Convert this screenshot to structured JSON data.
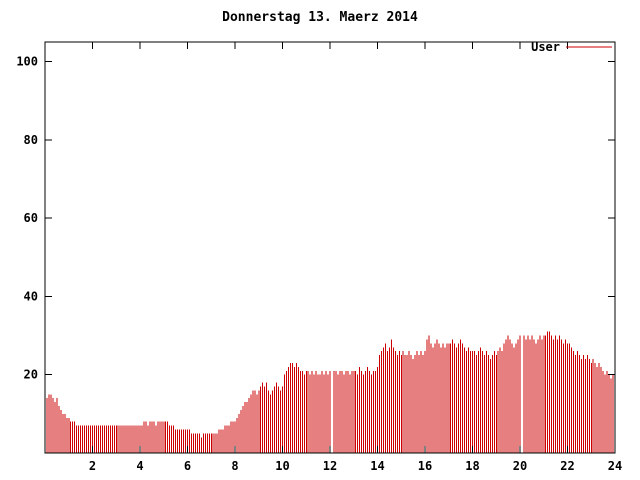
{
  "chart_data": {
    "type": "bar",
    "title": "Donnerstag 13. Maerz 2014",
    "xlabel": "",
    "ylabel": "",
    "xlim": [
      0,
      24
    ],
    "ylim": [
      0,
      105
    ],
    "xticks": [
      2,
      4,
      6,
      8,
      10,
      12,
      14,
      16,
      18,
      20,
      22,
      24
    ],
    "yticks": [
      20,
      40,
      60,
      80,
      100
    ],
    "grid": false,
    "legend_position": "top-right-inside",
    "series": [
      {
        "name": "User",
        "color": "#cc0000",
        "sample_interval_hours": 0.0833,
        "note": "user count sampled every 5 minutes over 24 hours; 0 = missing sample (gap)",
        "values": [
          14,
          15,
          15,
          14,
          13,
          14,
          12,
          11,
          10,
          10,
          9,
          9,
          8,
          8,
          8,
          7,
          7,
          7,
          7,
          7,
          7,
          7,
          7,
          7,
          7,
          7,
          7,
          7,
          7,
          7,
          7,
          7,
          7,
          7,
          7,
          7,
          7,
          7,
          7,
          7,
          7,
          7,
          7,
          7,
          7,
          7,
          7,
          7,
          7,
          8,
          8,
          7,
          8,
          8,
          8,
          7,
          8,
          8,
          8,
          8,
          8,
          8,
          7,
          7,
          7,
          6,
          6,
          6,
          6,
          6,
          6,
          6,
          6,
          5,
          5,
          5,
          5,
          5,
          4,
          5,
          5,
          5,
          5,
          5,
          5,
          5,
          5,
          6,
          6,
          6,
          7,
          7,
          7,
          8,
          8,
          8,
          9,
          10,
          11,
          12,
          13,
          13,
          14,
          15,
          16,
          16,
          15,
          16,
          17,
          18,
          17,
          18,
          16,
          15,
          16,
          17,
          18,
          17,
          16,
          17,
          20,
          21,
          22,
          23,
          23,
          22,
          23,
          22,
          21,
          21,
          20,
          21,
          21,
          20,
          21,
          20,
          21,
          20,
          20,
          21,
          20,
          21,
          20,
          21,
          0,
          21,
          21,
          20,
          21,
          21,
          20,
          21,
          21,
          20,
          21,
          21,
          21,
          20,
          22,
          21,
          20,
          21,
          22,
          21,
          20,
          21,
          21,
          22,
          25,
          26,
          27,
          28,
          26,
          27,
          29,
          27,
          26,
          25,
          26,
          25,
          26,
          25,
          25,
          26,
          25,
          24,
          25,
          26,
          25,
          26,
          25,
          26,
          29,
          30,
          28,
          27,
          28,
          29,
          28,
          27,
          28,
          27,
          28,
          28,
          28,
          29,
          28,
          27,
          28,
          29,
          28,
          27,
          26,
          27,
          26,
          26,
          26,
          25,
          26,
          27,
          26,
          25,
          26,
          25,
          24,
          25,
          26,
          25,
          26,
          27,
          26,
          28,
          29,
          30,
          29,
          28,
          27,
          28,
          29,
          30,
          0,
          30,
          29,
          30,
          29,
          30,
          29,
          28,
          29,
          30,
          29,
          30,
          30,
          31,
          31,
          30,
          29,
          30,
          29,
          30,
          29,
          28,
          29,
          28,
          28,
          27,
          26,
          25,
          26,
          25,
          24,
          25,
          24,
          25,
          24,
          23,
          24,
          23,
          22,
          23,
          22,
          21,
          20,
          21,
          20,
          19,
          20,
          19
        ]
      }
    ],
    "axis_color": "#000000",
    "background_color": "#ffffff"
  },
  "legend": {
    "user_label": "User"
  }
}
